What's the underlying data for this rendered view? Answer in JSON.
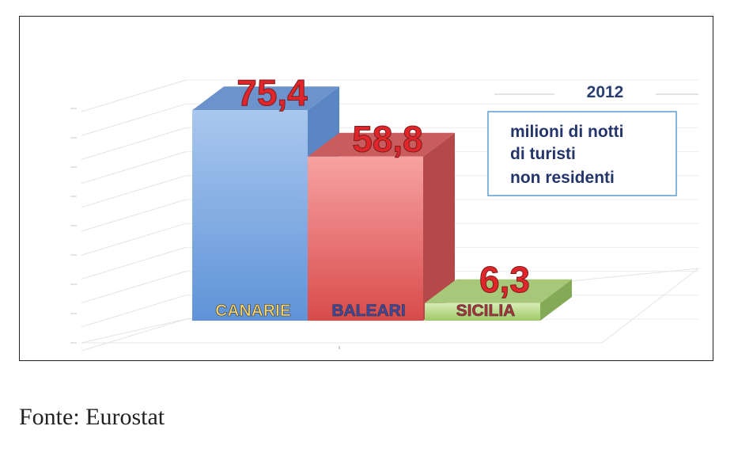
{
  "source_label": "Fonte: Eurostat",
  "legend": {
    "year": "2012",
    "lines": [
      "milioni di notti",
      "di turisti",
      "non residenti"
    ]
  },
  "chart_data": {
    "type": "bar",
    "categories": [
      "CANARIE",
      "BALEARI",
      "SICILIA"
    ],
    "values": [
      75.4,
      58.8,
      6.3
    ],
    "value_labels": [
      "75,4",
      "58,8",
      "6,3"
    ],
    "colors": [
      "#7ea7db",
      "#e56f6f",
      "#b6d58a"
    ],
    "grid": true,
    "ylim": [
      0,
      80
    ]
  }
}
